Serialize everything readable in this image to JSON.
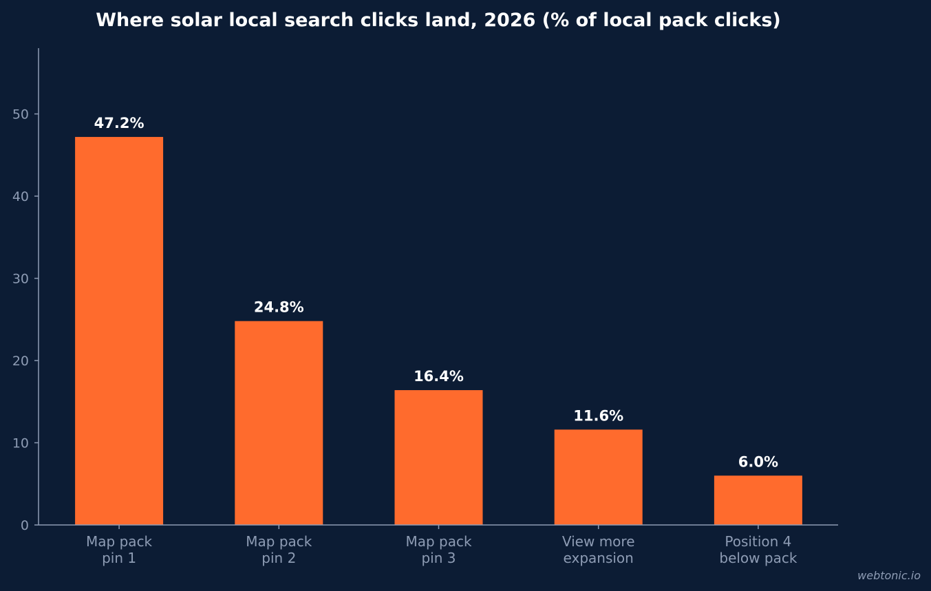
{
  "chart_data": {
    "type": "bar",
    "title": "Where solar local search clicks land, 2026 (% of local pack clicks)",
    "xlabel": "",
    "ylabel": "",
    "categories": [
      [
        "Map pack",
        "pin 1"
      ],
      [
        "Map pack",
        "pin 2"
      ],
      [
        "Map pack",
        "pin 3"
      ],
      [
        "View more",
        "expansion"
      ],
      [
        "Position 4",
        "below pack"
      ]
    ],
    "values": [
      47.2,
      24.8,
      16.4,
      11.6,
      6.0
    ],
    "value_labels": [
      "47.2%",
      "24.8%",
      "16.4%",
      "11.6%",
      "6.0%"
    ],
    "ylim": [
      0,
      58
    ],
    "yticks": [
      0,
      10,
      20,
      30,
      40,
      50
    ],
    "grid": false,
    "bar_color": "#ff6b2d",
    "background_color": "#0c1c34",
    "axis_color": "#8e9cb4",
    "text_color": "#ffffff",
    "watermark": "webtonic.io"
  }
}
